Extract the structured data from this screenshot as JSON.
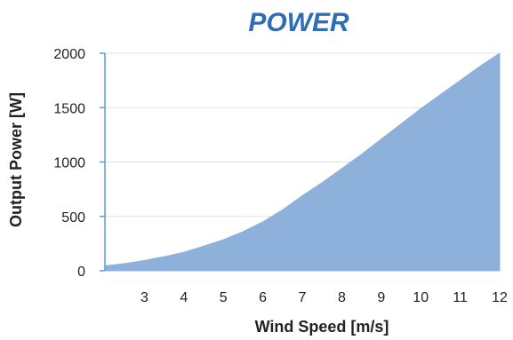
{
  "chart_data": {
    "type": "area",
    "title": "POWER",
    "xlabel": "Wind Speed [m/s]",
    "ylabel": "Output Power [W]",
    "x_ticks": [
      "3",
      "4",
      "5",
      "6",
      "7",
      "8",
      "9",
      "10",
      "11",
      "12"
    ],
    "y_ticks": [
      "0",
      "500",
      "1000",
      "1500",
      "2000"
    ],
    "ylim": [
      0,
      2000
    ],
    "xlim": [
      2,
      12
    ],
    "grid": true,
    "fill_color": "#8eb1db",
    "title_color": "#2f6db5",
    "series": [
      {
        "x": [
          2.0,
          2.5,
          3.0,
          3.5,
          4.0,
          4.5,
          5.0,
          5.5,
          6.0,
          6.5,
          7.0,
          7.5,
          8.0,
          8.5,
          9.0,
          9.5,
          10.0,
          10.5,
          11.0,
          11.5,
          12.0
        ],
        "values": [
          45,
          65,
          95,
          130,
          170,
          225,
          285,
          360,
          450,
          560,
          690,
          810,
          940,
          1070,
          1210,
          1350,
          1490,
          1620,
          1750,
          1880,
          2000
        ]
      }
    ]
  }
}
